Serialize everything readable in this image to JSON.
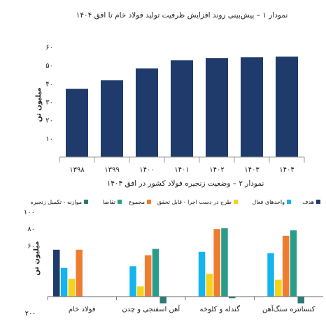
{
  "chart_data": [
    {
      "type": "bar",
      "title": "نمودار ۱ – پیش‌بینی روند افزایش ظرفیت تولید فولاد خام تا افق ۱۴۰۴",
      "y_label": "میلیون تن",
      "categories": [
        "۱۳۹۸",
        "۱۳۹۹",
        "۱۴۰۰",
        "۱۴۰۱",
        "۱۴۰۲",
        "۱۴۰۳",
        "۱۴۰۴"
      ],
      "values": [
        37.4,
        42,
        48.5,
        53,
        54.2,
        54.6,
        55
      ],
      "color": "#1f3b6b",
      "ylim": [
        0,
        60
      ],
      "yticks": [
        {
          "value": 10,
          "label": "۱۰"
        },
        {
          "value": 20,
          "label": "۲۰"
        },
        {
          "value": 30,
          "label": "۳۰"
        },
        {
          "value": 40,
          "label": "۴۰"
        },
        {
          "value": 50,
          "label": "۵۰"
        },
        {
          "value": 60,
          "label": "۶۰"
        }
      ]
    },
    {
      "type": "grouped_bar",
      "title": "نمودار ۲ – وضعیت زنجیره فولاد کشور در افق ۱۴۰۴",
      "y_label": "میلیون تن",
      "categories": [
        "فولاد خام",
        "آهن اسفنجی و چدن",
        "گندله و کلوخه",
        "کنسانتره سنگ‌آهن"
      ],
      "series": [
        {
          "name": "هدف",
          "color": "#1f3b6b",
          "values": [
            55.5,
            null,
            null,
            null
          ]
        },
        {
          "name": "واحدهای فعال",
          "color": "#14b4ee",
          "values": [
            34,
            36,
            53,
            51.5
          ]
        },
        {
          "name": "طرح در دست اجرا - قابل تحقق",
          "color": "#f5d21c",
          "values": [
            21,
            12,
            27,
            20
          ]
        },
        {
          "name": "مجموع",
          "color": "#ee7d2f",
          "values": [
            55.5,
            49,
            80,
            72
          ]
        },
        {
          "name": "تقاضا",
          "color": "#2a9d8a",
          "values": [
            null,
            56.5,
            81,
            78.5
          ]
        },
        {
          "name": "موازنه - تکمیل زنجیره",
          "color": "#2c7a78",
          "values": [
            null,
            -8,
            -2,
            -8
          ]
        }
      ],
      "ylim": [
        -20,
        100
      ],
      "yticks": [
        {
          "value": -20,
          "label": "۲۰-"
        },
        {
          "value": 60,
          "label": "۶۰"
        },
        {
          "value": 80,
          "label": "۸۰"
        },
        {
          "value": 100,
          "label": "۱۰۰"
        }
      ]
    }
  ]
}
